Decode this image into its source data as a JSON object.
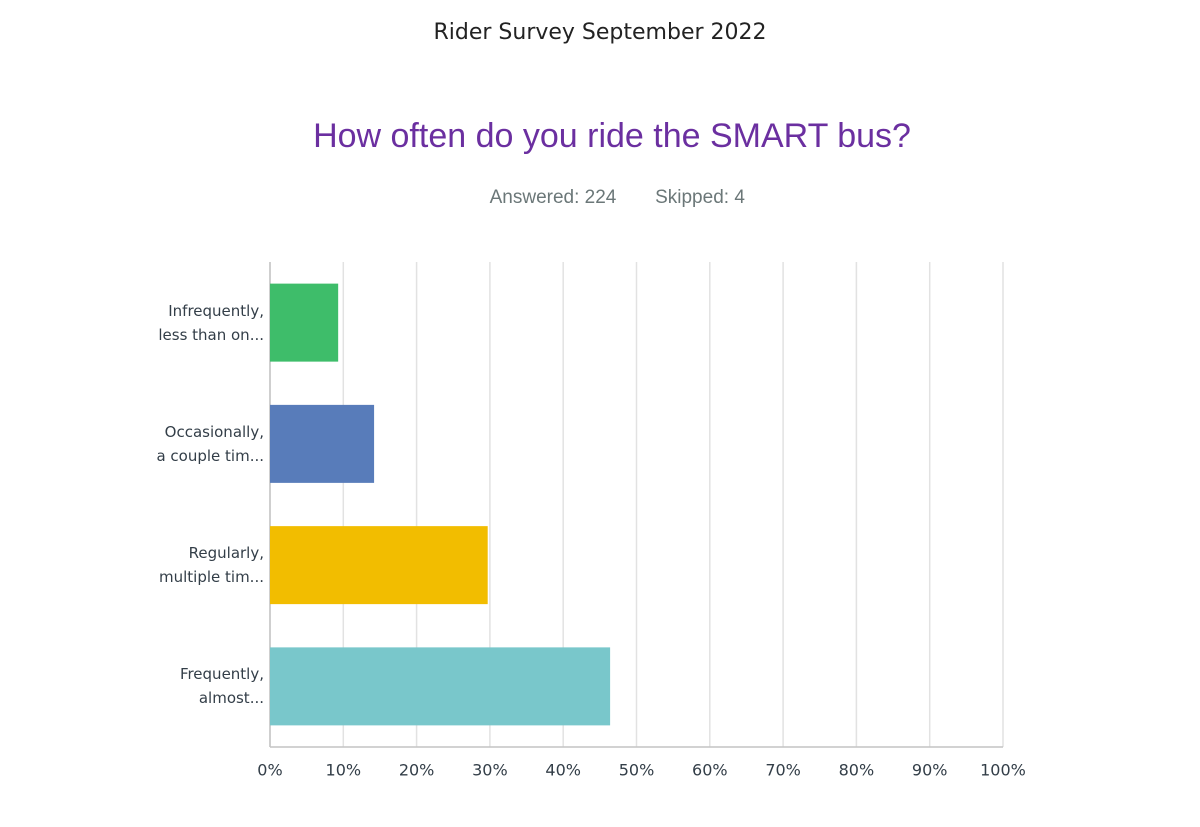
{
  "header": "Rider Survey September 2022",
  "chart_data": {
    "type": "hbar",
    "title": "How often do you ride the SMART bus?",
    "answered": "Answered: 224",
    "skipped": "Skipped: 4",
    "categories": [
      "Infrequently,\nless than on...",
      "Occasionally,\na couple tim...",
      "Regularly,\nmultiple tim...",
      "Frequently,\nalmost..."
    ],
    "values": [
      9.3,
      14.2,
      29.7,
      46.4
    ],
    "colors": [
      "#3ebd6a",
      "#587cba",
      "#f2bd00",
      "#79c7cb"
    ],
    "xlim": [
      0,
      100
    ],
    "xticks": [
      {
        "value": 0,
        "label": "0%"
      },
      {
        "value": 10,
        "label": "10%"
      },
      {
        "value": 20,
        "label": "20%"
      },
      {
        "value": 30,
        "label": "30%"
      },
      {
        "value": 40,
        "label": "40%"
      },
      {
        "value": 50,
        "label": "50%"
      },
      {
        "value": 60,
        "label": "60%"
      },
      {
        "value": 70,
        "label": "70%"
      },
      {
        "value": 80,
        "label": "80%"
      },
      {
        "value": 90,
        "label": "90%"
      },
      {
        "value": 100,
        "label": "100%"
      }
    ],
    "grid": true
  }
}
